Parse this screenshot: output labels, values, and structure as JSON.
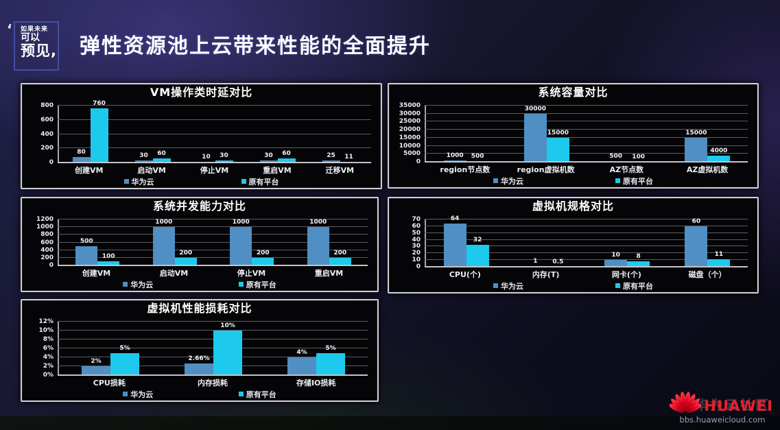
{
  "header": {
    "badge": {
      "quote": "‘",
      "line1": "如果未来",
      "line2": "可以",
      "line3": "预见,"
    },
    "title": "弹性资源池上云带来性能的全面提升"
  },
  "colors": {
    "huawei": "#4f8fc3",
    "legacy": "#1ec9ee",
    "brand_red": "#e6202c"
  },
  "chart_data": [
    {
      "type": "bar",
      "title": "VM操作类时延对比",
      "categories": [
        "创建VM",
        "启动VM",
        "停止VM",
        "重启VM",
        "迁移VM"
      ],
      "ymax": 800,
      "yticks": [
        0,
        200,
        400,
        600,
        800
      ],
      "ytick_labels": [
        "0",
        "200",
        "400",
        "600",
        "800"
      ],
      "grid": true,
      "legend_position": "bottom",
      "series": [
        {
          "name": "华为云",
          "values": [
            80,
            30,
            10,
            30,
            25
          ],
          "labels": [
            "80",
            "30",
            "10",
            "30",
            "25"
          ]
        },
        {
          "name": "原有平台",
          "values": [
            760,
            60,
            30,
            60,
            11
          ],
          "labels": [
            "760",
            "60",
            "30",
            "60",
            "11"
          ]
        }
      ]
    },
    {
      "type": "bar",
      "title": "系统容量对比",
      "categories": [
        "region节点数",
        "region虚拟机数",
        "AZ节点数",
        "AZ虚拟机数"
      ],
      "ymax": 35000,
      "yticks": [
        0,
        5000,
        10000,
        15000,
        20000,
        25000,
        30000,
        35000
      ],
      "ytick_labels": [
        "0",
        "5000",
        "10000",
        "15000",
        "20000",
        "25000",
        "30000",
        "35000"
      ],
      "grid": true,
      "legend_position": "bottom",
      "series": [
        {
          "name": "华为云",
          "values": [
            1000,
            30000,
            500,
            15000
          ],
          "labels": [
            "1000",
            "30000",
            "500",
            "15000"
          ]
        },
        {
          "name": "原有平台",
          "values": [
            500,
            15000,
            100,
            4000
          ],
          "labels": [
            "500",
            "15000",
            "100",
            "4000"
          ]
        }
      ]
    },
    {
      "type": "bar",
      "title": "系统并发能力对比",
      "categories": [
        "创建VM",
        "启动VM",
        "停止VM",
        "重启VM"
      ],
      "ymax": 1200,
      "yticks": [
        0,
        200,
        400,
        600,
        800,
        1000,
        1200
      ],
      "ytick_labels": [
        "0",
        "200",
        "400",
        "600",
        "800",
        "1000",
        "1200"
      ],
      "grid": true,
      "legend_position": "bottom",
      "series": [
        {
          "name": "华为云",
          "values": [
            500,
            1000,
            1000,
            1000
          ],
          "labels": [
            "500",
            "1000",
            "1000",
            "1000"
          ]
        },
        {
          "name": "原有平台",
          "values": [
            100,
            200,
            200,
            200
          ],
          "labels": [
            "100",
            "200",
            "200",
            "200"
          ]
        }
      ]
    },
    {
      "type": "bar",
      "title": "虚拟机规格对比",
      "categories": [
        "CPU(个)",
        "内存(T)",
        "网卡(个)",
        "磁盘（个）"
      ],
      "ymax": 70,
      "yticks": [
        0,
        10,
        20,
        30,
        40,
        50,
        60,
        70
      ],
      "ytick_labels": [
        "0",
        "10",
        "20",
        "30",
        "40",
        "50",
        "60",
        "70"
      ],
      "grid": true,
      "legend_position": "bottom",
      "series": [
        {
          "name": "华为云",
          "values": [
            64,
            1,
            10,
            60
          ],
          "labels": [
            "64",
            "1",
            "10",
            "60"
          ]
        },
        {
          "name": "原有平台",
          "values": [
            32,
            0.5,
            8,
            11
          ],
          "labels": [
            "32",
            "0.5",
            "8",
            "11"
          ]
        }
      ]
    },
    {
      "type": "bar",
      "title": "虚拟机性能损耗对比",
      "categories": [
        "CPU损耗",
        "内存损耗",
        "存储IO损耗"
      ],
      "ymax": 12,
      "yticks": [
        0,
        2,
        4,
        6,
        8,
        10,
        12
      ],
      "ytick_labels": [
        "0%",
        "2%",
        "4%",
        "6%",
        "8%",
        "10%",
        "12%"
      ],
      "grid": true,
      "legend_position": "bottom",
      "series": [
        {
          "name": "华为云",
          "values": [
            2,
            2.66,
            4
          ],
          "labels": [
            "2%",
            "2.66%",
            "4%"
          ]
        },
        {
          "name": "原有平台",
          "values": [
            5,
            10,
            5
          ],
          "labels": [
            "5%",
            "10%",
            "5%"
          ]
        }
      ]
    }
  ],
  "footer": {
    "watermark": "华为云社区",
    "brand": "HUAWEI",
    "site": "bbs.huaweicloud.com"
  }
}
